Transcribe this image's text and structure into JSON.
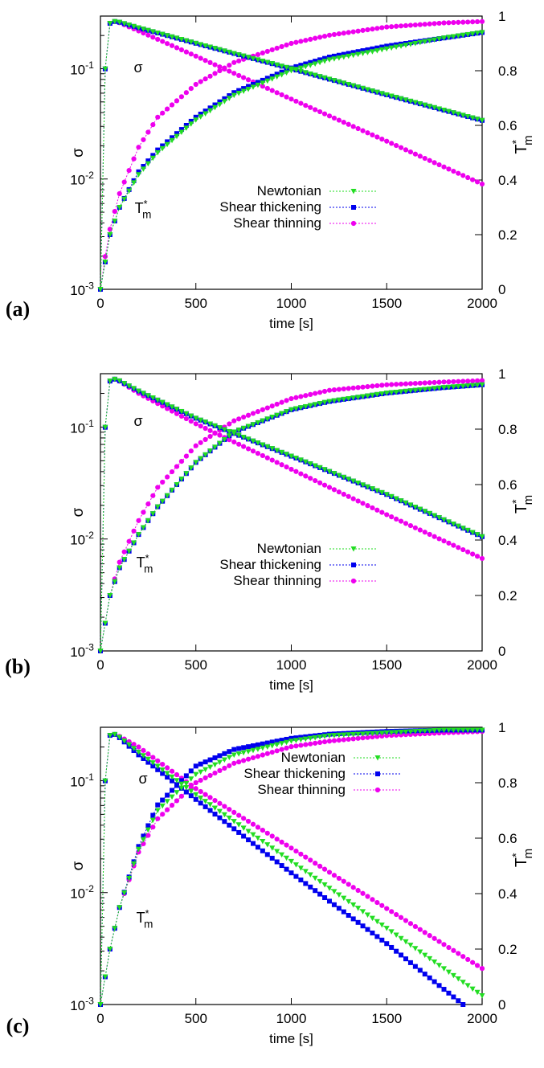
{
  "chart_data": [
    {
      "panel": "(a)",
      "type": "line",
      "xlabel": "time [s]",
      "ylabel_left": "σ",
      "ylabel_right": "T*m",
      "xlim": [
        0,
        2000
      ],
      "ylim_left_log": [
        0.001,
        0.3
      ],
      "ylim_right": [
        0,
        1
      ],
      "x_ticks": [
        "0",
        "500",
        "1000",
        "1500",
        "2000"
      ],
      "yleft_ticks": [
        "10-3",
        "10-2",
        "10-1"
      ],
      "yright_ticks": [
        "0",
        "0.2",
        "0.4",
        "0.6",
        "0.8",
        "1"
      ],
      "annotations": [
        "σ",
        "T*m"
      ],
      "legend": [
        "Newtonian",
        "Shear thickening",
        "Shear thinning"
      ],
      "legend_position": "center-right",
      "series": [
        {
          "name": "Newtonian",
          "color": "#22dd22",
          "marker": "triangle",
          "axis": "right",
          "x": [
            0,
            25,
            50,
            100,
            200,
            300,
            500,
            700,
            1000,
            1200,
            1500,
            1800,
            2000
          ],
          "y": [
            0.0,
            0.1,
            0.2,
            0.3,
            0.42,
            0.5,
            0.62,
            0.71,
            0.8,
            0.84,
            0.88,
            0.92,
            0.94
          ]
        },
        {
          "name": "Shear thickening",
          "color": "#0000ee",
          "marker": "square",
          "axis": "right",
          "x": [
            0,
            25,
            50,
            100,
            200,
            300,
            500,
            700,
            1000,
            1200,
            1500,
            1800,
            2000
          ],
          "y": [
            0.0,
            0.1,
            0.2,
            0.3,
            0.43,
            0.51,
            0.63,
            0.72,
            0.81,
            0.85,
            0.89,
            0.92,
            0.94
          ]
        },
        {
          "name": "Shear thinning",
          "color": "#ee00ee",
          "marker": "circle",
          "axis": "right",
          "x": [
            0,
            25,
            50,
            100,
            200,
            300,
            500,
            700,
            1000,
            1200,
            1500,
            1800,
            2000
          ],
          "y": [
            0.0,
            0.12,
            0.22,
            0.35,
            0.52,
            0.63,
            0.75,
            0.83,
            0.9,
            0.93,
            0.96,
            0.975,
            0.98
          ]
        },
        {
          "name": "Newtonian",
          "color": "#22dd22",
          "marker": "triangle",
          "axis": "left",
          "x": [
            0,
            30,
            80,
            200,
            500,
            1000,
            1500,
            2000
          ],
          "y": [
            0.001,
            0.25,
            0.27,
            0.235,
            0.17,
            0.1,
            0.058,
            0.034
          ]
        },
        {
          "name": "Shear thickening",
          "color": "#0000ee",
          "marker": "square",
          "axis": "left",
          "x": [
            0,
            30,
            80,
            200,
            500,
            1000,
            1500,
            2000
          ],
          "y": [
            0.001,
            0.25,
            0.27,
            0.235,
            0.17,
            0.1,
            0.058,
            0.034
          ]
        },
        {
          "name": "Shear thinning",
          "color": "#ee00ee",
          "marker": "circle",
          "axis": "left",
          "x": [
            0,
            30,
            80,
            200,
            500,
            1000,
            1500,
            2000
          ],
          "y": [
            0.001,
            0.25,
            0.27,
            0.22,
            0.13,
            0.053,
            0.022,
            0.009
          ]
        }
      ]
    },
    {
      "panel": "(b)",
      "type": "line",
      "xlabel": "time [s]",
      "ylabel_left": "σ",
      "ylabel_right": "T*m",
      "xlim": [
        0,
        2000
      ],
      "ylim_left_log": [
        0.001,
        0.3
      ],
      "ylim_right": [
        0,
        1
      ],
      "x_ticks": [
        "0",
        "500",
        "1000",
        "1500",
        "2000"
      ],
      "yleft_ticks": [
        "10-3",
        "10-2",
        "10-1"
      ],
      "yright_ticks": [
        "0",
        "0.2",
        "0.4",
        "0.6",
        "0.8",
        "1"
      ],
      "annotations": [
        "σ",
        "T*m"
      ],
      "legend": [
        "Newtonian",
        "Shear thickening",
        "Shear thinning"
      ],
      "legend_position": "center-right",
      "series": [
        {
          "name": "Newtonian",
          "color": "#22dd22",
          "marker": "triangle",
          "axis": "right",
          "x": [
            0,
            25,
            50,
            100,
            200,
            300,
            500,
            700,
            1000,
            1200,
            1500,
            1800,
            2000
          ],
          "y": [
            0.0,
            0.1,
            0.2,
            0.3,
            0.42,
            0.52,
            0.68,
            0.79,
            0.87,
            0.9,
            0.93,
            0.95,
            0.96
          ]
        },
        {
          "name": "Shear thickening",
          "color": "#0000ee",
          "marker": "square",
          "axis": "right",
          "x": [
            0,
            25,
            50,
            100,
            200,
            300,
            500,
            700,
            1000,
            1200,
            1500,
            1800,
            2000
          ],
          "y": [
            0.0,
            0.1,
            0.2,
            0.3,
            0.42,
            0.52,
            0.68,
            0.79,
            0.87,
            0.9,
            0.93,
            0.95,
            0.96
          ]
        },
        {
          "name": "Shear thinning",
          "color": "#ee00ee",
          "marker": "circle",
          "axis": "right",
          "x": [
            0,
            25,
            50,
            100,
            200,
            300,
            500,
            700,
            1000,
            1200,
            1500,
            1800,
            2000
          ],
          "y": [
            0.0,
            0.1,
            0.2,
            0.32,
            0.47,
            0.59,
            0.74,
            0.83,
            0.91,
            0.94,
            0.96,
            0.97,
            0.975
          ]
        },
        {
          "name": "Newtonian",
          "color": "#22dd22",
          "marker": "triangle",
          "axis": "left",
          "x": [
            0,
            30,
            80,
            200,
            500,
            1000,
            1500,
            2000
          ],
          "y": [
            0.001,
            0.25,
            0.27,
            0.21,
            0.12,
            0.055,
            0.025,
            0.0105
          ]
        },
        {
          "name": "Shear thickening",
          "color": "#0000ee",
          "marker": "square",
          "axis": "left",
          "x": [
            0,
            30,
            80,
            200,
            500,
            1000,
            1500,
            2000
          ],
          "y": [
            0.001,
            0.25,
            0.27,
            0.21,
            0.12,
            0.055,
            0.025,
            0.0105
          ]
        },
        {
          "name": "Shear thinning",
          "color": "#ee00ee",
          "marker": "circle",
          "axis": "left",
          "x": [
            0,
            30,
            80,
            200,
            500,
            1000,
            1500,
            2000
          ],
          "y": [
            0.001,
            0.25,
            0.27,
            0.2,
            0.107,
            0.042,
            0.0165,
            0.0067
          ]
        }
      ]
    },
    {
      "panel": "(c)",
      "type": "line",
      "xlabel": "time [s]",
      "ylabel_left": "σ",
      "ylabel_right": "T*m",
      "xlim": [
        0,
        2000
      ],
      "ylim_left_log": [
        0.001,
        0.3
      ],
      "ylim_right": [
        0,
        1
      ],
      "x_ticks": [
        "0",
        "500",
        "1000",
        "1500",
        "2000"
      ],
      "yleft_ticks": [
        "10-3",
        "10-2",
        "10-1"
      ],
      "yright_ticks": [
        "0",
        "0.2",
        "0.4",
        "0.6",
        "0.8",
        "1"
      ],
      "annotations": [
        "σ",
        "T*m"
      ],
      "legend": [
        "Newtonian",
        "Shear thickening",
        "Shear thinning"
      ],
      "legend_position": "top-right",
      "series": [
        {
          "name": "Newtonian",
          "color": "#22dd22",
          "marker": "triangle",
          "axis": "right",
          "x": [
            0,
            25,
            50,
            100,
            200,
            300,
            500,
            700,
            1000,
            1200,
            1500,
            1800,
            2000
          ],
          "y": [
            0.0,
            0.1,
            0.2,
            0.35,
            0.56,
            0.7,
            0.83,
            0.9,
            0.95,
            0.97,
            0.98,
            0.99,
            0.99
          ]
        },
        {
          "name": "Shear thickening",
          "color": "#0000ee",
          "marker": "square",
          "axis": "right",
          "x": [
            0,
            25,
            50,
            100,
            200,
            300,
            500,
            700,
            1000,
            1200,
            1500,
            1800,
            2000
          ],
          "y": [
            0.0,
            0.1,
            0.2,
            0.35,
            0.57,
            0.72,
            0.86,
            0.92,
            0.96,
            0.975,
            0.985,
            0.99,
            0.99
          ]
        },
        {
          "name": "Shear thinning",
          "color": "#ee00ee",
          "marker": "circle",
          "axis": "right",
          "x": [
            0,
            25,
            50,
            100,
            200,
            300,
            500,
            700,
            1000,
            1200,
            1500,
            1800,
            2000
          ],
          "y": [
            0.0,
            0.1,
            0.2,
            0.35,
            0.55,
            0.67,
            0.8,
            0.87,
            0.93,
            0.95,
            0.97,
            0.98,
            0.985
          ]
        },
        {
          "name": "Newtonian",
          "color": "#22dd22",
          "marker": "triangle",
          "axis": "left",
          "x": [
            0,
            30,
            80,
            200,
            500,
            1000,
            1500,
            2000
          ],
          "y": [
            0.001,
            0.25,
            0.26,
            0.18,
            0.075,
            0.019,
            0.0048,
            0.0012
          ]
        },
        {
          "name": "Shear thickening",
          "color": "#0000ee",
          "marker": "square",
          "axis": "left",
          "x": [
            0,
            30,
            80,
            200,
            500,
            1000,
            1500,
            1900
          ],
          "y": [
            0.001,
            0.25,
            0.26,
            0.17,
            0.068,
            0.015,
            0.0035,
            0.001
          ]
        },
        {
          "name": "Shear thinning",
          "color": "#ee00ee",
          "marker": "circle",
          "axis": "left",
          "x": [
            0,
            30,
            80,
            200,
            500,
            1000,
            1500,
            2000
          ],
          "y": [
            0.001,
            0.25,
            0.26,
            0.2,
            0.085,
            0.025,
            0.0072,
            0.0021
          ]
        }
      ]
    }
  ]
}
